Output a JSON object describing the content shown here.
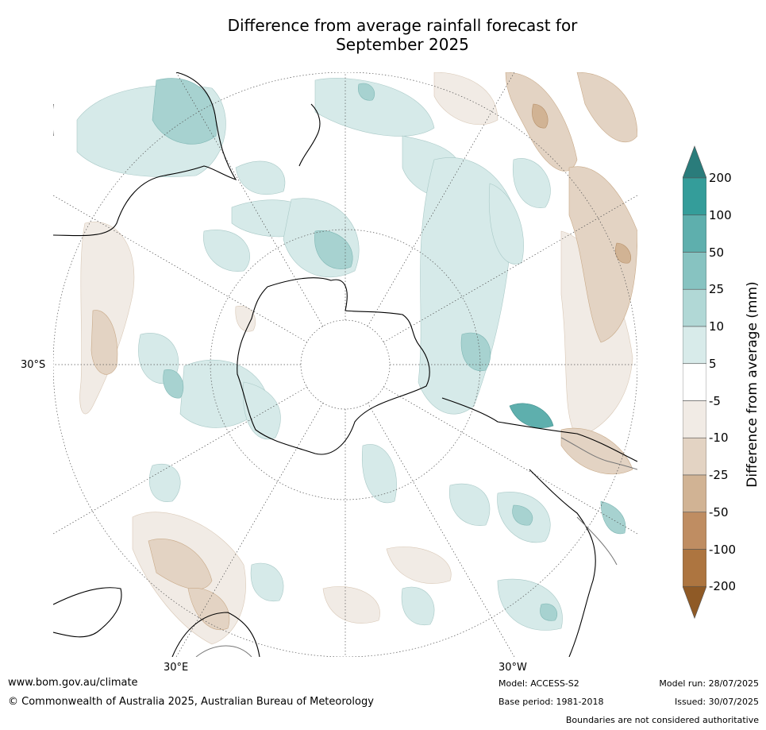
{
  "title_line1": "Difference from average rainfall forecast for",
  "title_line2": "September 2025",
  "map": {
    "projection": "south-polar stereographic",
    "lat_label": "30°S",
    "lon_label_east": "30°E",
    "lon_label_west": "30°W"
  },
  "colorbar": {
    "title": "Difference from average (mm)",
    "labels": [
      "200",
      "100",
      "50",
      "25",
      "10",
      "5",
      "-5",
      "-10",
      "-25",
      "-50",
      "-100",
      "-200"
    ],
    "colors": [
      "#2a7c7b",
      "#349d9a",
      "#5eafad",
      "#87c3c1",
      "#b1d8d6",
      "#d8ebea",
      "#ffffff",
      "#f1ebe5",
      "#e3d3c3",
      "#d1b394",
      "#bf8d62",
      "#ad7540",
      "#8f5a26"
    ]
  },
  "footer": {
    "website": "www.bom.gov.au/climate",
    "copyright": "© Commonwealth of Australia 2025, Australian Bureau of Meteorology",
    "model": "Model: ACCESS-S2",
    "base_period": "Base period: 1981-2018",
    "model_run": "Model run: 28/07/2025",
    "issued": "Issued: 30/07/2025",
    "disclaimer": "Boundaries are not considered authoritative"
  }
}
